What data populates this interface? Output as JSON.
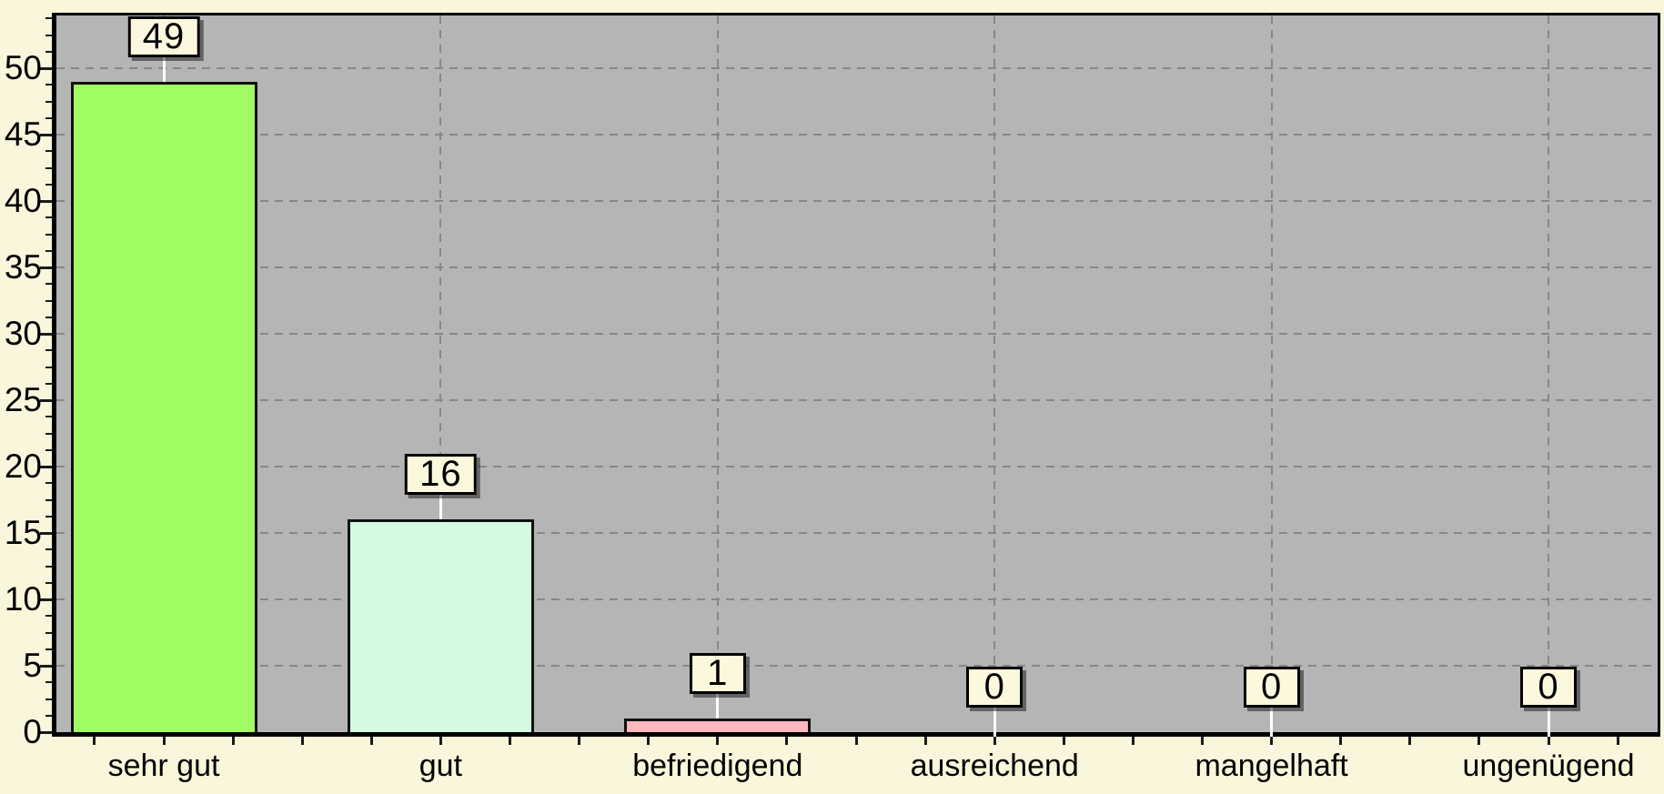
{
  "chart_data": {
    "type": "bar",
    "title": "",
    "categories": [
      "sehr gut",
      "gut",
      "befriedigend",
      "ausreichend",
      "mangelhaft",
      "ungenügend"
    ],
    "values": [
      49,
      16,
      1,
      0,
      0,
      0
    ],
    "value_labels": [
      "49",
      "16",
      "1",
      "0",
      "0",
      "0"
    ],
    "bar_colors": [
      "#A0FC62",
      "#D4FBDF",
      "#FFB9BE",
      null,
      null,
      null
    ],
    "xlabel": "",
    "ylabel": "",
    "y_tick_labels": [
      "0",
      "5",
      "10",
      "15",
      "20",
      "25",
      "30",
      "35",
      "40",
      "45",
      "50"
    ],
    "y_major_step": 5,
    "y_minor_step": 1.25,
    "ylim": [
      0,
      53.9
    ],
    "grid": "dashed-horizontal-and-vertical",
    "legend_position": "none",
    "value_label_boxes": true
  },
  "colors": {
    "page_bg": "#FAF6DC",
    "plot_bg": "#B5B5B5",
    "grid": "#878787",
    "axis": "#000000",
    "bar_border": "#101010",
    "box_bg": "#FCF8DE",
    "box_border": "#000000",
    "connector": "#FFFFFF",
    "tick": "#1A1A1A",
    "text": "#000000"
  }
}
